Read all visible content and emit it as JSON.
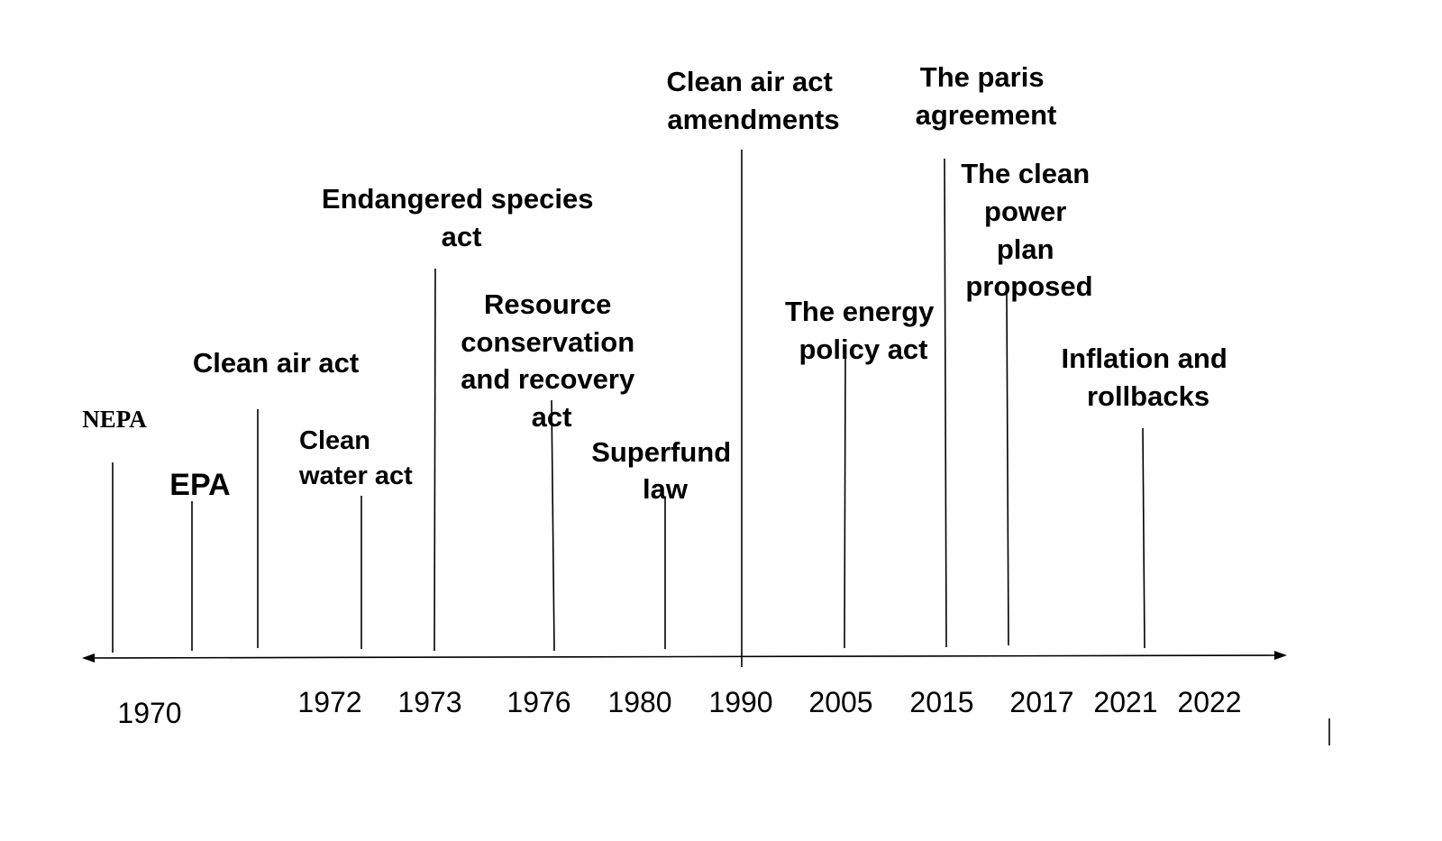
{
  "events": [
    {
      "label": "NEPA"
    },
    {
      "label": "EPA"
    },
    {
      "label": "Clean air act"
    },
    {
      "label": "Clean water act"
    },
    {
      "label": "Endangered species act"
    },
    {
      "label": "Resource conservation and recovery act"
    },
    {
      "label": "Superfund law"
    },
    {
      "label": "Clean air act amendments"
    },
    {
      "label": "The energy policy act"
    },
    {
      "label": "The paris agreement"
    },
    {
      "label": "The clean power plan proposed"
    },
    {
      "label": "Inflation and rollbacks"
    }
  ],
  "years": [
    "1970",
    "1972",
    "1973",
    "1976",
    "1980",
    "1990",
    "2005",
    "2015",
    "2017",
    "2021",
    "2022"
  ]
}
